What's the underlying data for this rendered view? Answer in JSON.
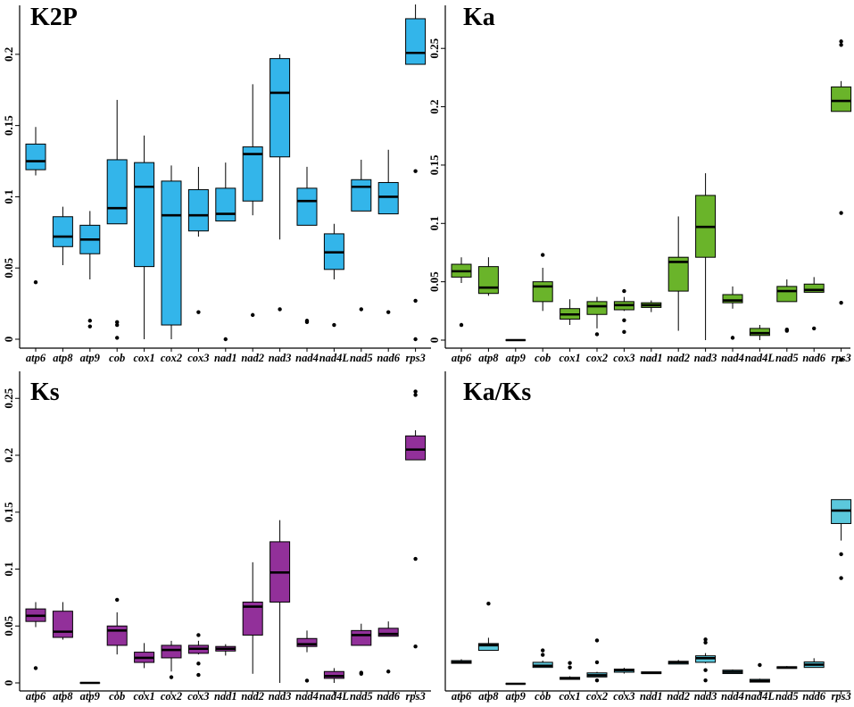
{
  "chart_data": [
    {
      "type": "box",
      "title": "K2P",
      "color": "#33b5ea",
      "categories": [
        "atp6",
        "atp8",
        "atp9",
        "cob",
        "cox1",
        "cox2",
        "cox3",
        "nad1",
        "nad2",
        "nad3",
        "nad4",
        "nad4L",
        "nad5",
        "nad6",
        "rps3"
      ],
      "ylim": [
        0,
        0.235
      ],
      "yticks": [
        0,
        0.05,
        0.1,
        0.15,
        0.2
      ],
      "ytick_labels": [
        "0",
        "0.05",
        "0.1",
        "0.15",
        "0.2"
      ],
      "boxes": [
        {
          "min": 0.115,
          "q1": 0.119,
          "median": 0.125,
          "q3": 0.137,
          "max": 0.149,
          "outliers": [
            0.04
          ]
        },
        {
          "min": 0.052,
          "q1": 0.065,
          "median": 0.072,
          "q3": 0.086,
          "max": 0.093,
          "outliers": []
        },
        {
          "min": 0.042,
          "q1": 0.06,
          "median": 0.07,
          "q3": 0.08,
          "max": 0.09,
          "outliers": [
            0.013,
            0.009
          ]
        },
        {
          "min": 0.081,
          "q1": 0.081,
          "median": 0.092,
          "q3": 0.126,
          "max": 0.168,
          "outliers": [
            0.012,
            0.01,
            0.001
          ]
        },
        {
          "min": 0.0,
          "q1": 0.051,
          "median": 0.107,
          "q3": 0.124,
          "max": 0.143,
          "outliers": []
        },
        {
          "min": 0.0,
          "q1": 0.01,
          "median": 0.087,
          "q3": 0.111,
          "max": 0.122,
          "outliers": []
        },
        {
          "min": 0.072,
          "q1": 0.076,
          "median": 0.087,
          "q3": 0.105,
          "max": 0.121,
          "outliers": [
            0.019
          ]
        },
        {
          "min": 0.083,
          "q1": 0.083,
          "median": 0.088,
          "q3": 0.106,
          "max": 0.124,
          "outliers": [
            0.0
          ]
        },
        {
          "min": 0.087,
          "q1": 0.097,
          "median": 0.13,
          "q3": 0.135,
          "max": 0.179,
          "outliers": [
            0.017
          ]
        },
        {
          "min": 0.07,
          "q1": 0.128,
          "median": 0.173,
          "q3": 0.197,
          "max": 0.2,
          "outliers": [
            0.021
          ]
        },
        {
          "min": 0.08,
          "q1": 0.08,
          "median": 0.097,
          "q3": 0.106,
          "max": 0.121,
          "outliers": [
            0.013,
            0.012
          ]
        },
        {
          "min": 0.042,
          "q1": 0.049,
          "median": 0.061,
          "q3": 0.074,
          "max": 0.081,
          "outliers": [
            0.01
          ]
        },
        {
          "min": 0.09,
          "q1": 0.09,
          "median": 0.107,
          "q3": 0.112,
          "max": 0.126,
          "outliers": [
            0.021
          ]
        },
        {
          "min": 0.088,
          "q1": 0.088,
          "median": 0.1,
          "q3": 0.11,
          "max": 0.133,
          "outliers": [
            0.019
          ]
        },
        {
          "min": 0.193,
          "q1": 0.193,
          "median": 0.201,
          "q3": 0.225,
          "max": 0.235,
          "outliers": [
            0.118,
            0.027,
            0.0
          ]
        }
      ]
    },
    {
      "type": "box",
      "title": "Ka",
      "color": "#6ab42a",
      "categories": [
        "atp6",
        "atp8",
        "atp9",
        "cob",
        "cox1",
        "cox2",
        "cox3",
        "nad1",
        "nad2",
        "nad3",
        "nad4",
        "nad4L",
        "nad5",
        "nad6",
        "rps3"
      ],
      "ylim": [
        0,
        0.28
      ],
      "yticks": [
        0,
        0.05,
        0.1,
        0.15,
        0.2,
        0.25
      ],
      "ytick_labels": [
        "0",
        "0.05",
        "0.1",
        "0.15",
        "0.2",
        "0.25"
      ],
      "boxes": [
        {
          "min": 0.049,
          "q1": 0.054,
          "median": 0.059,
          "q3": 0.065,
          "max": 0.071,
          "outliers": [
            0.013
          ]
        },
        {
          "min": 0.038,
          "q1": 0.04,
          "median": 0.045,
          "q3": 0.063,
          "max": 0.071,
          "outliers": []
        },
        {
          "min": 0.0,
          "q1": 0.0,
          "median": 0.0,
          "q3": 0.0,
          "max": 0.0,
          "outliers": []
        },
        {
          "min": 0.025,
          "q1": 0.033,
          "median": 0.046,
          "q3": 0.05,
          "max": 0.062,
          "outliers": [
            0.073
          ]
        },
        {
          "min": 0.013,
          "q1": 0.018,
          "median": 0.022,
          "q3": 0.027,
          "max": 0.035,
          "outliers": []
        },
        {
          "min": 0.01,
          "q1": 0.022,
          "median": 0.029,
          "q3": 0.033,
          "max": 0.037,
          "outliers": [
            0.005
          ]
        },
        {
          "min": 0.025,
          "q1": 0.026,
          "median": 0.03,
          "q3": 0.033,
          "max": 0.037,
          "outliers": [
            0.042,
            0.017,
            0.007
          ]
        },
        {
          "min": 0.024,
          "q1": 0.028,
          "median": 0.03,
          "q3": 0.032,
          "max": 0.034,
          "outliers": []
        },
        {
          "min": 0.008,
          "q1": 0.042,
          "median": 0.067,
          "q3": 0.071,
          "max": 0.106,
          "outliers": []
        },
        {
          "min": 0.0,
          "q1": 0.071,
          "median": 0.097,
          "q3": 0.124,
          "max": 0.143,
          "outliers": []
        },
        {
          "min": 0.027,
          "q1": 0.032,
          "median": 0.034,
          "q3": 0.039,
          "max": 0.046,
          "outliers": [
            0.002
          ]
        },
        {
          "min": 0.0,
          "q1": 0.004,
          "median": 0.006,
          "q3": 0.01,
          "max": 0.013,
          "outliers": []
        },
        {
          "min": 0.033,
          "q1": 0.033,
          "median": 0.042,
          "q3": 0.046,
          "max": 0.052,
          "outliers": [
            0.009,
            0.008
          ]
        },
        {
          "min": 0.041,
          "q1": 0.041,
          "median": 0.043,
          "q3": 0.048,
          "max": 0.054,
          "outliers": [
            0.01
          ]
        },
        {
          "min": 0.196,
          "q1": 0.196,
          "median": 0.205,
          "q3": 0.217,
          "max": 0.222,
          "outliers": [
            0.256,
            0.253,
            0.109,
            0.032
          ]
        }
      ]
    },
    {
      "type": "box",
      "title": "Ks",
      "color": "#92309a",
      "categories": [
        "atp6",
        "atp8",
        "atp9",
        "cob",
        "cox1",
        "cox2",
        "cox3",
        "nad1",
        "nad2",
        "nad3",
        "nad4",
        "nad4L",
        "nad5",
        "nad6",
        "rps3"
      ],
      "ylim": [
        0,
        0.28
      ],
      "yticks": [
        0,
        0.05,
        0.1,
        0.15,
        0.2,
        0.25
      ],
      "ytick_labels": [
        "0",
        "0.05",
        "0.1",
        "0.15",
        "0.2",
        "0.25"
      ],
      "boxes": [
        {
          "min": 0.049,
          "q1": 0.054,
          "median": 0.059,
          "q3": 0.065,
          "max": 0.071,
          "outliers": [
            0.013
          ]
        },
        {
          "min": 0.038,
          "q1": 0.04,
          "median": 0.045,
          "q3": 0.063,
          "max": 0.071,
          "outliers": []
        },
        {
          "min": 0.0,
          "q1": 0.0,
          "median": 0.0,
          "q3": 0.0,
          "max": 0.0,
          "outliers": []
        },
        {
          "min": 0.025,
          "q1": 0.033,
          "median": 0.046,
          "q3": 0.05,
          "max": 0.062,
          "outliers": [
            0.073
          ]
        },
        {
          "min": 0.013,
          "q1": 0.018,
          "median": 0.022,
          "q3": 0.027,
          "max": 0.035,
          "outliers": []
        },
        {
          "min": 0.01,
          "q1": 0.022,
          "median": 0.029,
          "q3": 0.033,
          "max": 0.037,
          "outliers": [
            0.005
          ]
        },
        {
          "min": 0.025,
          "q1": 0.026,
          "median": 0.03,
          "q3": 0.033,
          "max": 0.037,
          "outliers": [
            0.042,
            0.017,
            0.007
          ]
        },
        {
          "min": 0.024,
          "q1": 0.028,
          "median": 0.03,
          "q3": 0.032,
          "max": 0.034,
          "outliers": []
        },
        {
          "min": 0.008,
          "q1": 0.042,
          "median": 0.067,
          "q3": 0.071,
          "max": 0.106,
          "outliers": []
        },
        {
          "min": 0.0,
          "q1": 0.071,
          "median": 0.097,
          "q3": 0.124,
          "max": 0.143,
          "outliers": []
        },
        {
          "min": 0.027,
          "q1": 0.032,
          "median": 0.034,
          "q3": 0.039,
          "max": 0.046,
          "outliers": [
            0.002
          ]
        },
        {
          "min": 0.0,
          "q1": 0.004,
          "median": 0.006,
          "q3": 0.01,
          "max": 0.013,
          "outliers": []
        },
        {
          "min": 0.033,
          "q1": 0.033,
          "median": 0.042,
          "q3": 0.046,
          "max": 0.052,
          "outliers": [
            0.009,
            0.008
          ]
        },
        {
          "min": 0.041,
          "q1": 0.041,
          "median": 0.043,
          "q3": 0.048,
          "max": 0.054,
          "outliers": [
            0.01
          ]
        },
        {
          "min": 0.196,
          "q1": 0.196,
          "median": 0.205,
          "q3": 0.217,
          "max": 0.222,
          "outliers": [
            0.256,
            0.253,
            0.109,
            0.032
          ]
        }
      ]
    },
    {
      "type": "box",
      "title": "Ka/Ks",
      "color": "#5bc8dc",
      "categories": [
        "atp6",
        "atp8",
        "atp9",
        "cob",
        "cox1",
        "cox2",
        "cox3",
        "nad1",
        "nad2",
        "nad3",
        "nad4",
        "nad4L",
        "nad5",
        "nad6",
        "rps3"
      ],
      "ylim": [
        0,
        1.0
      ],
      "yticks": [],
      "ytick_labels": [],
      "boxes": [
        {
          "min": 0.06,
          "q1": 0.06,
          "median": 0.063,
          "q3": 0.068,
          "max": 0.072,
          "outliers": []
        },
        {
          "min": 0.098,
          "q1": 0.098,
          "median": 0.113,
          "q3": 0.118,
          "max": 0.135,
          "outliers": [
            0.235
          ]
        },
        {
          "min": 0.0,
          "q1": 0.0,
          "median": 0.0,
          "q3": 0.0,
          "max": 0.0,
          "outliers": []
        },
        {
          "min": 0.048,
          "q1": 0.048,
          "median": 0.053,
          "q3": 0.063,
          "max": 0.068,
          "outliers": [
            0.098,
            0.085
          ]
        },
        {
          "min": 0.013,
          "q1": 0.013,
          "median": 0.016,
          "q3": 0.019,
          "max": 0.022,
          "outliers": [
            0.061,
            0.048
          ]
        },
        {
          "min": 0.02,
          "q1": 0.02,
          "median": 0.025,
          "q3": 0.032,
          "max": 0.035,
          "outliers": [
            0.127,
            0.063,
            0.01
          ]
        },
        {
          "min": 0.03,
          "q1": 0.034,
          "median": 0.04,
          "q3": 0.043,
          "max": 0.047,
          "outliers": []
        },
        {
          "min": 0.03,
          "q1": 0.03,
          "median": 0.032,
          "q3": 0.035,
          "max": 0.035,
          "outliers": []
        },
        {
          "min": 0.058,
          "q1": 0.058,
          "median": 0.063,
          "q3": 0.066,
          "max": 0.07,
          "outliers": []
        },
        {
          "min": 0.06,
          "q1": 0.063,
          "median": 0.075,
          "q3": 0.082,
          "max": 0.09,
          "outliers": [
            0.13,
            0.121,
            0.04,
            0.01
          ]
        },
        {
          "min": 0.03,
          "q1": 0.03,
          "median": 0.035,
          "q3": 0.04,
          "max": 0.042,
          "outliers": []
        },
        {
          "min": 0.005,
          "q1": 0.005,
          "median": 0.008,
          "q3": 0.013,
          "max": 0.015,
          "outliers": [
            0.055
          ]
        },
        {
          "min": 0.045,
          "q1": 0.045,
          "median": 0.048,
          "q3": 0.05,
          "max": 0.052,
          "outliers": []
        },
        {
          "min": 0.048,
          "q1": 0.048,
          "median": 0.056,
          "q3": 0.064,
          "max": 0.075,
          "outliers": []
        },
        {
          "min": 0.42,
          "q1": 0.47,
          "median": 0.508,
          "q3": 0.54,
          "max": 0.54,
          "outliers": [
            0.95,
            0.38,
            0.31
          ]
        }
      ]
    }
  ]
}
